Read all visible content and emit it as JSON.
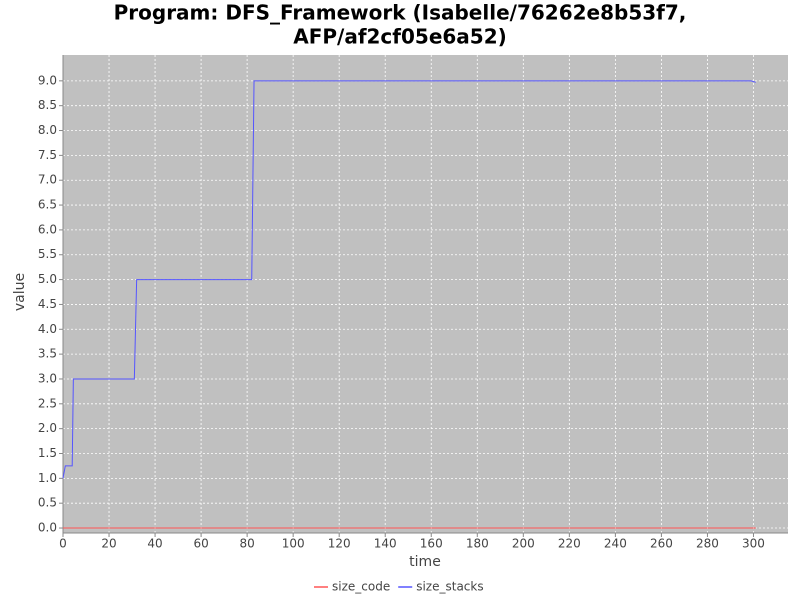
{
  "chart_data": {
    "type": "line",
    "title": [
      "Program: DFS_Framework (Isabelle/76262e8b53f7,",
      "AFP/af2cf05e6a52)"
    ],
    "x_label": "time",
    "y_label": "value",
    "x": [
      0,
      1,
      4,
      4.5,
      31,
      32,
      82,
      83,
      299,
      301
    ],
    "series": [
      {
        "name": "size_code",
        "color": "#ff5555",
        "values": [
          0,
          0,
          0,
          0,
          0,
          0,
          0,
          0,
          0,
          0
        ]
      },
      {
        "name": "size_stacks",
        "color": "#5555ff",
        "values": [
          1.0,
          1.25,
          1.25,
          3,
          3,
          5,
          5,
          9,
          9,
          8.97
        ]
      }
    ],
    "xlim": [
      0,
      315
    ],
    "xticks": [
      0,
      20,
      40,
      60,
      80,
      100,
      120,
      140,
      160,
      180,
      200,
      220,
      240,
      260,
      280,
      300
    ],
    "ylim": [
      -0.1,
      9.52
    ],
    "yticks": [
      {
        "value": 0,
        "label": "0.0"
      },
      0.5,
      {
        "value": 1,
        "label": "1.0"
      },
      1.5,
      {
        "value": 2,
        "label": "2.0"
      },
      2.5,
      {
        "value": 3,
        "label": "3.0"
      },
      3.5,
      {
        "value": 4,
        "label": "4.0"
      },
      4.5,
      {
        "value": 5,
        "label": "5.0"
      },
      5.5,
      {
        "value": 6,
        "label": "6.0"
      },
      6.5,
      {
        "value": 7,
        "label": "7.0"
      },
      7.5,
      {
        "value": 8,
        "label": "8.0"
      },
      8.5,
      {
        "value": 9,
        "label": "9.0"
      }
    ],
    "grid": true,
    "legend": "bottom"
  }
}
